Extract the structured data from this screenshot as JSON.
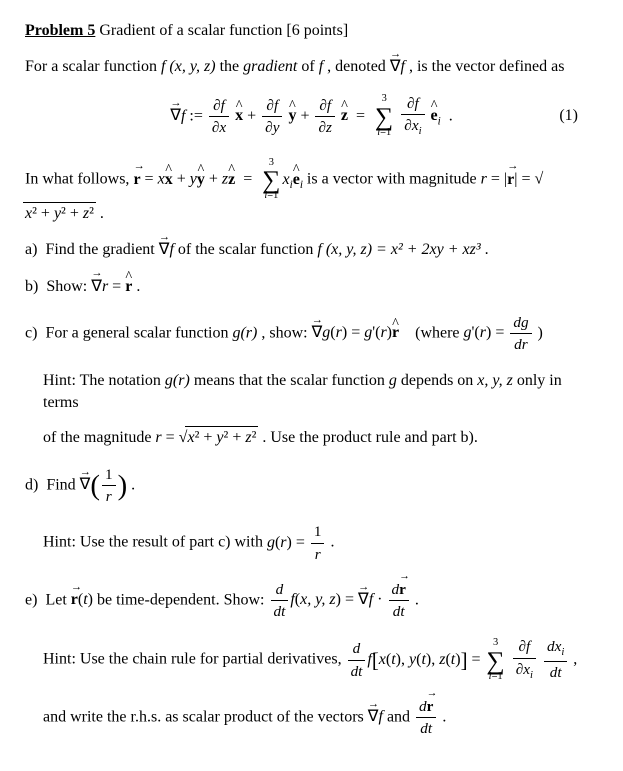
{
  "title": {
    "label": "Problem 5",
    "text": "Gradient of a scalar function",
    "points": "[6 points]"
  },
  "intro": {
    "prefix": "For a scalar function ",
    "func": "f (x, y, z)",
    "mid": " the ",
    "gradient_word": "gradient",
    "mid2": " of ",
    "f": "f",
    "mid3": " , denoted ",
    "nabla_f": "∇f",
    "suffix": " , is the vector defined as"
  },
  "eq1": {
    "number": "(1)"
  },
  "follows": {
    "prefix": "In what follows, ",
    "mid": " is a vector with magnitude "
  },
  "parts": {
    "a": {
      "label": "a)",
      "text1": "Find the gradient ",
      "text2": " of the scalar function ",
      "func": "f (x, y, z) = x² + 2xy + xz³",
      "period": " ."
    },
    "b": {
      "label": "b)",
      "text": "Show: ",
      "period": " ."
    },
    "c": {
      "label": "c)",
      "text1": "For a general scalar function ",
      "gr": "g(r)",
      "text2": ", show: ",
      "where_open": "(where ",
      "where_close": ")",
      "hint1_prefix": "Hint: The notation ",
      "hint1_gr": "g(r)",
      "hint1_mid": " means that the scalar function ",
      "hint1_g": "g",
      "hint1_mid2": " depends on ",
      "hint1_xyz": "x, y, z",
      "hint1_suffix": " only in terms",
      "hint2_prefix": "of the magnitude ",
      "hint2_suffix": " . Use the product rule and part b)."
    },
    "d": {
      "label": "d)",
      "text": "Find ",
      "period": " .",
      "hint_prefix": "Hint: Use the result of part c) with ",
      "hint_period": "."
    },
    "e": {
      "label": "e)",
      "text1": "Let ",
      "text2": " be time-dependent. Show: ",
      "period": " .",
      "hint1": "Hint: Use the chain rule for partial derivatives, ",
      "comma": " ,",
      "hint2_prefix": "and write the r.h.s. as scalar product of the vectors ",
      "hint2_and": " and ",
      "hint2_period": " ."
    }
  }
}
